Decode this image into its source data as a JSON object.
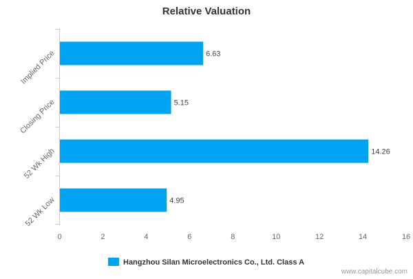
{
  "chart_data": {
    "type": "bar",
    "orientation": "horizontal",
    "title": "Relative Valuation",
    "categories": [
      "Implied Price",
      "Closing Price",
      "52 Wk High",
      "52 Wk Low"
    ],
    "series": [
      {
        "name": "Hangzhou Silan Microelectronics Co., Ltd. Class A",
        "values": [
          6.63,
          5.15,
          14.26,
          4.95
        ],
        "color": "#00a2f2"
      }
    ],
    "data_labels": [
      "6.63",
      "5.15",
      "14.26",
      "4.95"
    ],
    "xlim": [
      0,
      16
    ],
    "x_ticks": [
      0,
      2,
      4,
      6,
      8,
      10,
      12,
      14,
      16
    ],
    "grid": false,
    "legend_position": "bottom-center"
  },
  "watermark": "www.capitalcube.com",
  "colors": {
    "bar": "#00a2f2",
    "axis": "#cccccc",
    "title": "#333333",
    "tick_text": "#666666",
    "label_text": "#444444"
  }
}
